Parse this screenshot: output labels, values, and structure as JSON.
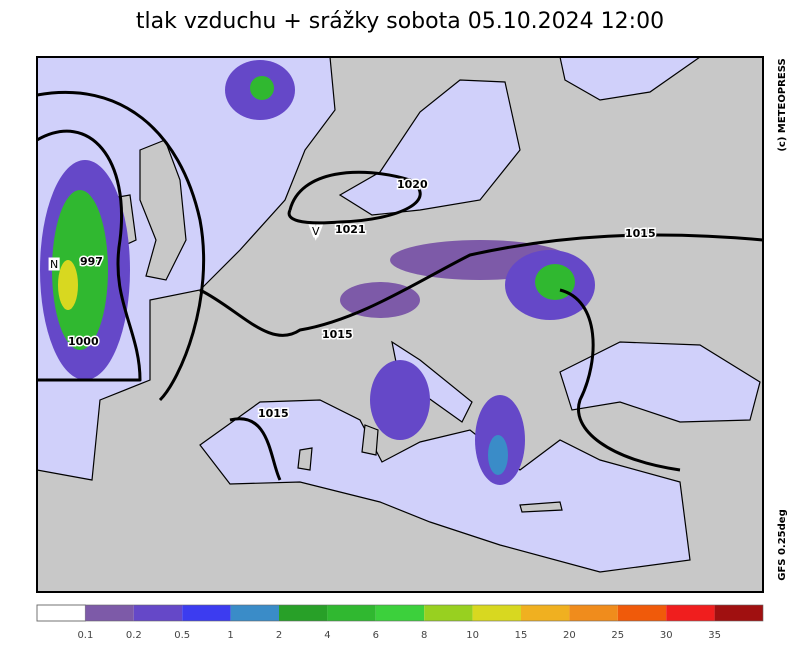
{
  "title": "tlak vzduchu + srážky  sobota 05.10.2024 12:00",
  "credit": "(c) METEOPRESS",
  "model": "GFS 0.25deg",
  "pressure_centers": [
    {
      "letter": "N",
      "value": "997"
    },
    {
      "letter": "V",
      "value": "1021"
    }
  ],
  "isobar_labels": [
    "1020",
    "1015",
    "1015",
    "1015",
    "1000"
  ],
  "legend": {
    "colors": [
      "#ffffff",
      "#7d5aa8",
      "#6548c8",
      "#3c3cf0",
      "#3a8cc8",
      "#28a028",
      "#30b830",
      "#3cd03c",
      "#98d020",
      "#d8d820",
      "#f0b020",
      "#f08c1c",
      "#f05a0a",
      "#f01e1e",
      "#a01010"
    ],
    "labels": [
      "0.1",
      "0.2",
      "0.5",
      "1",
      "2",
      "4",
      "6",
      "8",
      "10",
      "15",
      "20",
      "25",
      "30",
      "35"
    ]
  }
}
